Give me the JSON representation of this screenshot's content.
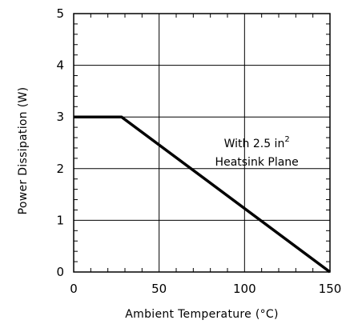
{
  "chart_data": {
    "type": "line",
    "title": "",
    "xlabel": "Ambient Temperature (°C)",
    "ylabel": "Power Dissipation (W)",
    "xlim": [
      0,
      150
    ],
    "ylim": [
      0,
      5
    ],
    "xticks": [
      0,
      50,
      100,
      150
    ],
    "yticks": [
      0,
      1,
      2,
      3,
      4,
      5
    ],
    "grid": true,
    "series": [
      {
        "x": [
          0,
          28,
          150
        ],
        "y": [
          3,
          3,
          0
        ]
      }
    ],
    "annotation": {
      "line1_prefix": "With 2.5 in",
      "line1_superscript": "2",
      "line2": "Heatsink Plane",
      "x": 110,
      "y": 2.35
    }
  }
}
